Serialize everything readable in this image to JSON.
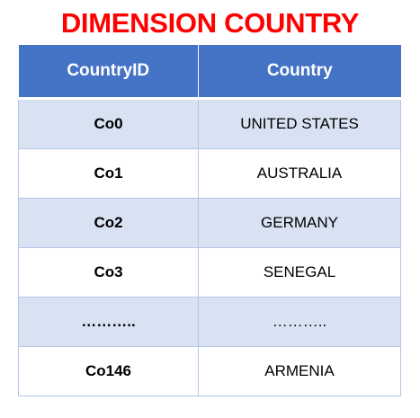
{
  "title": "DIMENSION COUNTRY",
  "colors": {
    "title": "#ff0000",
    "header_bg": "#4472c4",
    "header_text": "#ffffff",
    "band": "#d9e2f3",
    "border": "#b4c6e7"
  },
  "table": {
    "headers": [
      "CountryID",
      "Country"
    ],
    "rows": [
      {
        "id": "Co0",
        "country": "UNITED STATES"
      },
      {
        "id": "Co1",
        "country": "AUSTRALIA"
      },
      {
        "id": "Co2",
        "country": "GERMANY"
      },
      {
        "id": "Co3",
        "country": "SENEGAL"
      },
      {
        "id": "………..",
        "country": "……….."
      },
      {
        "id": "Co146",
        "country": "ARMENIA"
      }
    ]
  }
}
